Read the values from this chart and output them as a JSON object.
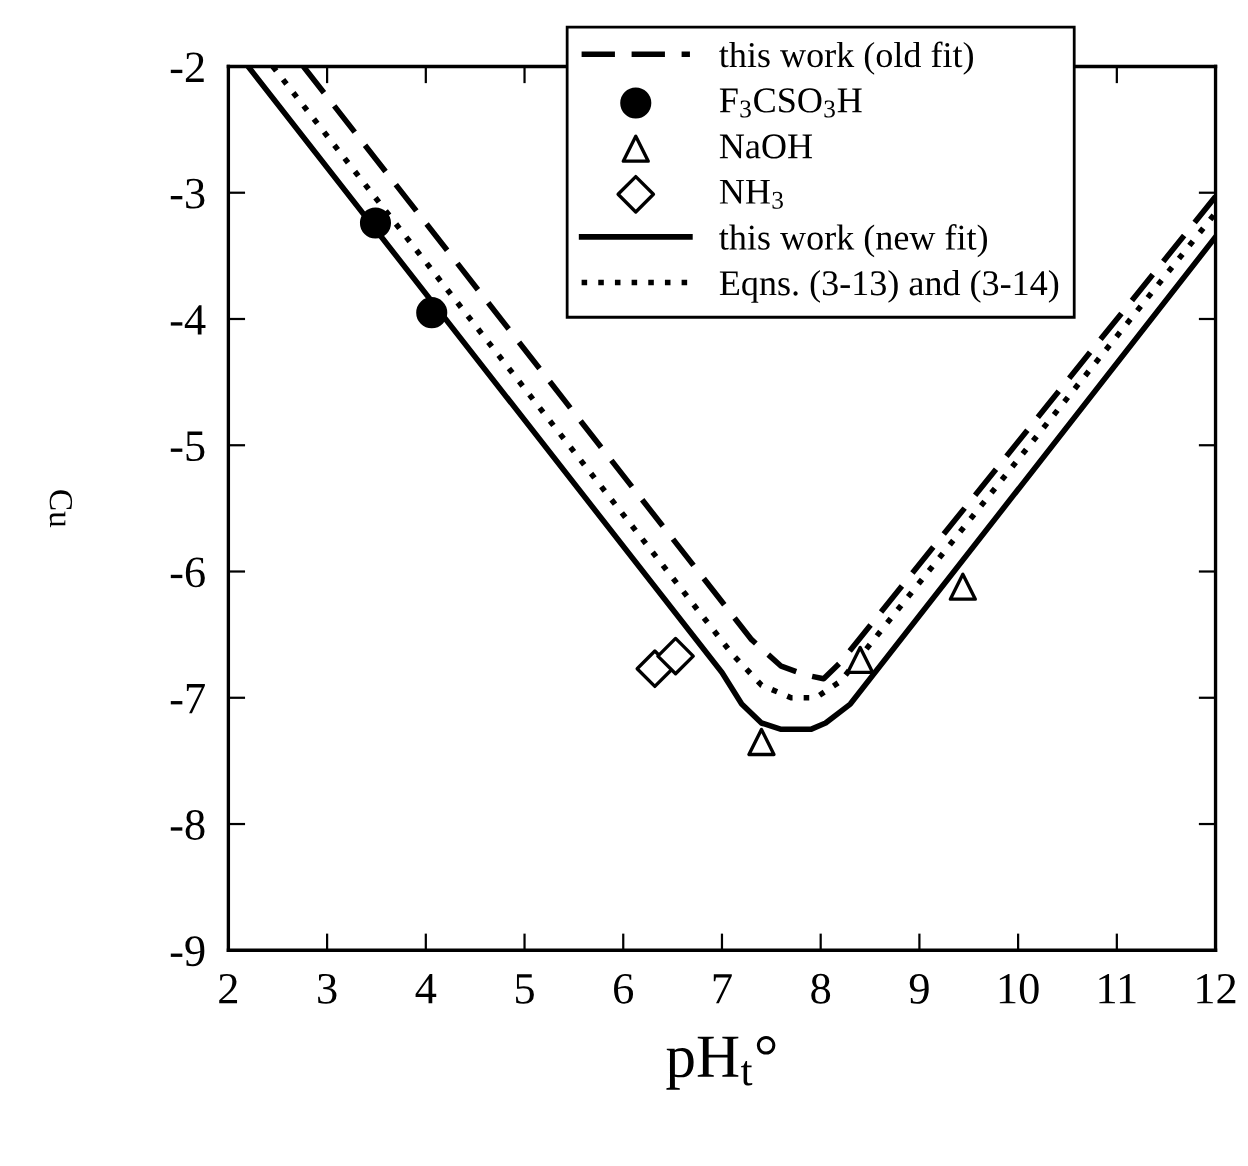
{
  "chart_data": {
    "type": "line",
    "xlabel": "pH$_{t}$°",
    "ylabel": "Cu",
    "xlim": [
      2,
      12
    ],
    "ylim": [
      -9,
      -2
    ],
    "xticks": [
      2,
      3,
      4,
      5,
      6,
      7,
      8,
      9,
      10,
      11,
      12
    ],
    "yticks": [
      -9,
      -8,
      -7,
      -6,
      -5,
      -4,
      -3,
      -2
    ],
    "grid": false,
    "legend": "top",
    "series": [
      {
        "name": "this work (old fit)",
        "line_style": "dashed",
        "marker": "none",
        "color": "#000000",
        "x": [
          2.76,
          7.3,
          7.6,
          7.85,
          8.03,
          8.2,
          12
        ],
        "values": [
          -2,
          -6.54,
          -6.75,
          -6.82,
          -6.85,
          -6.72,
          -3.03
        ]
      },
      {
        "name": "F$_{3}$CSO$_{3}$H",
        "type": "scatter",
        "marker": "circle",
        "color": "#000000",
        "x": [
          3.49,
          4.06
        ],
        "values": [
          -3.24,
          -3.95
        ]
      },
      {
        "name": "NaOH",
        "type": "scatter",
        "marker": "triangle",
        "color": "#000000",
        "x": [
          7.4,
          8.4,
          9.44
        ],
        "values": [
          -7.35,
          -6.7,
          -6.12
        ]
      },
      {
        "name": "NH$_{3}$",
        "type": "scatter",
        "marker": "diamond",
        "color": "#000000",
        "x": [
          6.32,
          6.53
        ],
        "values": [
          -6.77,
          -6.67
        ]
      },
      {
        "name": "this work (new fit)",
        "line_style": "solid",
        "marker": "none",
        "color": "#000000",
        "x": [
          2.2,
          7.0,
          7.2,
          7.4,
          7.6,
          7.9,
          8.05,
          8.3,
          12
        ],
        "values": [
          -2,
          -6.8,
          -7.05,
          -7.2,
          -7.25,
          -7.25,
          -7.2,
          -7.05,
          -3.35
        ]
      },
      {
        "name": "Eqns. (3-13) and (3-14)",
        "line_style": "dotted",
        "marker": "none",
        "color": "#000000",
        "x": [
          2.45,
          7.1,
          7.4,
          7.7,
          7.95,
          8.2,
          12
        ],
        "values": [
          -2,
          -6.65,
          -6.9,
          -7.0,
          -7.0,
          -6.87,
          -3.16
        ]
      }
    ]
  }
}
